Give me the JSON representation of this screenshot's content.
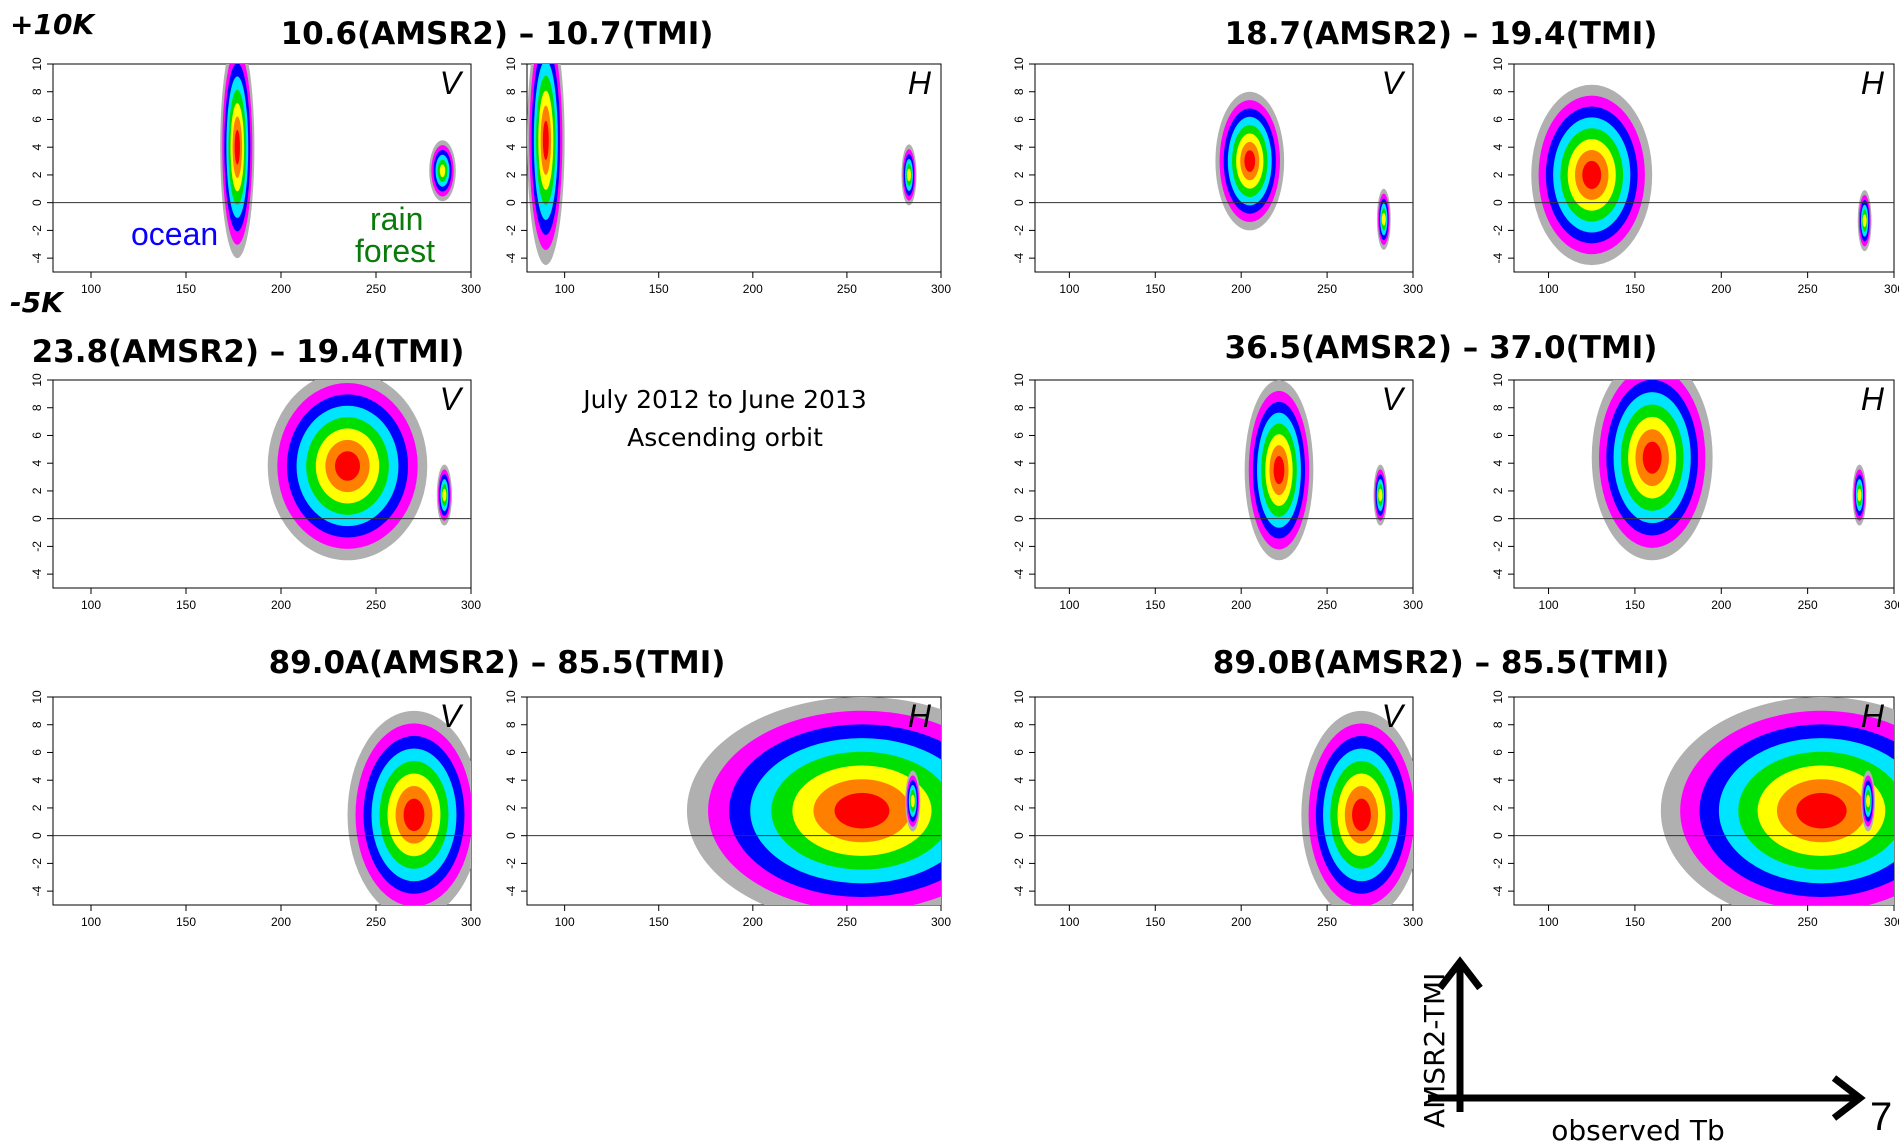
{
  "figure": {
    "corner_top": "+10K",
    "corner_bottom": "-5K",
    "note_line1": "July 2012 to June 2013",
    "note_line2": "Ascending orbit",
    "ocean_label": "ocean",
    "forest_label_1": "rain",
    "forest_label_2": "forest",
    "key_yaxis": "AMSR2-TMI",
    "key_xaxis": "observed Tb",
    "page_number": "7"
  },
  "colors": {
    "gray": "#b0b0b0",
    "magenta": "#ff00ff",
    "blue": "#0000ff",
    "cyan": "#00e5ff",
    "green": "#00e000",
    "yellow": "#ffff00",
    "orange": "#ff8000",
    "red": "#ff0000"
  },
  "titles": [
    "10.6(AMSR2) – 10.7(TMI)",
    "18.7(AMSR2) – 19.4(TMI)",
    "23.8(AMSR2) – 19.4(TMI)",
    "36.5(AMSR2) – 37.0(TMI)",
    "89.0A(AMSR2) – 85.5(TMI)",
    "89.0B(AMSR2) – 85.5(TMI)"
  ],
  "chart_data": [
    {
      "type": "heatmap",
      "channel": "10.6",
      "pol": "V",
      "xlim": [
        80,
        300
      ],
      "ylim": [
        -5,
        10
      ],
      "xticks": [
        100,
        150,
        200,
        250,
        300
      ],
      "yticks": [
        -4,
        -2,
        0,
        2,
        4,
        6,
        8,
        10
      ],
      "blobs": [
        {
          "x": [
            168,
            183
          ],
          "y": [
            -4,
            9.5
          ],
          "cx": 177,
          "cy": 4,
          "level": 7
        },
        {
          "x": 282,
          "y": 2.3,
          "cx": 285,
          "cy": 2.3,
          "level": 5
        }
      ]
    },
    {
      "type": "heatmap",
      "channel": "10.6",
      "pol": "H",
      "xlim": [
        80,
        300
      ],
      "ylim": [
        -5,
        10
      ],
      "xticks": [
        100,
        150,
        200,
        250,
        300
      ],
      "yticks": [
        -4,
        -2,
        0,
        2,
        4,
        6,
        8,
        10
      ],
      "blobs": [
        {
          "x": [
            82,
            100
          ],
          "y": [
            -4.5,
            10
          ],
          "cx": 90,
          "cy": 4.5,
          "level": 7
        },
        {
          "x": 283,
          "y": 2,
          "cx": 283,
          "cy": 2,
          "level": 5
        }
      ]
    },
    {
      "type": "heatmap",
      "channel": "18.7",
      "pol": "V",
      "xlim": [
        80,
        300
      ],
      "ylim": [
        -5,
        10
      ],
      "xticks": [
        100,
        150,
        200,
        250,
        300
      ],
      "yticks": [
        -4,
        -2,
        0,
        2,
        4,
        6,
        8,
        10
      ],
      "blobs": [
        {
          "x": [
            185,
            225
          ],
          "y": [
            -1,
            8
          ],
          "cx": 205,
          "cy": 3,
          "level": 7
        },
        {
          "x": 283,
          "y": -1.2,
          "cx": 283,
          "cy": -1.2,
          "level": 5
        }
      ]
    },
    {
      "type": "heatmap",
      "channel": "18.7",
      "pol": "H",
      "xlim": [
        80,
        300
      ],
      "ylim": [
        -5,
        10
      ],
      "xticks": [
        100,
        150,
        200,
        250,
        300
      ],
      "yticks": [
        -4,
        -2,
        0,
        2,
        4,
        6,
        8,
        10
      ],
      "blobs": [
        {
          "x": [
            95,
            160
          ],
          "y": [
            -4.5,
            8
          ],
          "cx": 125,
          "cy": 2,
          "level": 7
        },
        {
          "x": 283,
          "y": -1.3,
          "cx": 283,
          "cy": -1.3,
          "level": 5
        }
      ]
    },
    {
      "type": "heatmap",
      "channel": "23.8",
      "pol": "V",
      "xlim": [
        80,
        300
      ],
      "ylim": [
        -5,
        10
      ],
      "xticks": [
        100,
        150,
        200,
        250,
        300
      ],
      "yticks": [
        -4,
        -2,
        0,
        2,
        4,
        6,
        8,
        10
      ],
      "blobs": [
        {
          "x": [
            193,
            263
          ],
          "y": [
            -3,
            9
          ],
          "cx": 235,
          "cy": 3.8,
          "level": 7
        },
        {
          "x": 286,
          "y": 1.7,
          "cx": 286,
          "cy": 1.7,
          "level": 5
        }
      ]
    },
    {
      "type": "heatmap",
      "channel": "36.5",
      "pol": "V",
      "xlim": [
        80,
        300
      ],
      "ylim": [
        -5,
        10
      ],
      "xticks": [
        100,
        150,
        200,
        250,
        300
      ],
      "yticks": [
        -4,
        -2,
        0,
        2,
        4,
        6,
        8,
        10
      ],
      "blobs": [
        {
          "x": [
            207,
            242
          ],
          "y": [
            -2,
            10
          ],
          "cx": 222,
          "cy": 3.5,
          "level": 7
        },
        {
          "x": 281,
          "y": 1.7,
          "cx": 281,
          "cy": 1.7,
          "level": 5
        }
      ]
    },
    {
      "type": "heatmap",
      "channel": "36.5",
      "pol": "H",
      "xlim": [
        80,
        300
      ],
      "ylim": [
        -5,
        10
      ],
      "xticks": [
        100,
        150,
        200,
        250,
        300
      ],
      "yticks": [
        -4,
        -2,
        0,
        2,
        4,
        6,
        8,
        10
      ],
      "blobs": [
        {
          "x": [
            125,
            190
          ],
          "y": [
            -3,
            10
          ],
          "cx": 160,
          "cy": 4.4,
          "level": 7
        },
        {
          "x": 280,
          "y": 1.7,
          "cx": 280,
          "cy": 1.7,
          "level": 5
        }
      ]
    },
    {
      "type": "heatmap",
      "channel": "89.0A",
      "pol": "V",
      "xlim": [
        80,
        300
      ],
      "ylim": [
        -5,
        10
      ],
      "xticks": [
        100,
        150,
        200,
        250,
        300
      ],
      "yticks": [
        -4,
        -2,
        0,
        2,
        4,
        6,
        8,
        10
      ],
      "blobs": [
        {
          "x": [
            235,
            290
          ],
          "y": [
            -4.5,
            9
          ],
          "cx": 270,
          "cy": 1.5,
          "level": 7
        }
      ]
    },
    {
      "type": "heatmap",
      "channel": "89.0A",
      "pol": "H",
      "xlim": [
        80,
        300
      ],
      "ylim": [
        -5,
        10
      ],
      "xticks": [
        100,
        150,
        200,
        250,
        300
      ],
      "yticks": [
        -4,
        -2,
        0,
        2,
        4,
        6,
        8,
        10
      ],
      "blobs": [
        {
          "x": [
            165,
            290
          ],
          "y": [
            -4.5,
            10
          ],
          "cx": 258,
          "cy": 1.8,
          "level": 7
        },
        {
          "x": 285,
          "y": 2.5,
          "cx": 285,
          "cy": 2.5,
          "level": 5
        }
      ]
    },
    {
      "type": "heatmap",
      "channel": "89.0B",
      "pol": "V",
      "xlim": [
        80,
        300
      ],
      "ylim": [
        -5,
        10
      ],
      "xticks": [
        100,
        150,
        200,
        250,
        300
      ],
      "yticks": [
        -4,
        -2,
        0,
        2,
        4,
        6,
        8,
        10
      ],
      "blobs": [
        {
          "x": [
            235,
            290
          ],
          "y": [
            -4.5,
            9
          ],
          "cx": 270,
          "cy": 1.5,
          "level": 7
        }
      ]
    },
    {
      "type": "heatmap",
      "channel": "89.0B",
      "pol": "H",
      "xlim": [
        80,
        300
      ],
      "ylim": [
        -5,
        10
      ],
      "xticks": [
        100,
        150,
        200,
        250,
        300
      ],
      "yticks": [
        -4,
        -2,
        0,
        2,
        4,
        6,
        8,
        10
      ],
      "blobs": [
        {
          "x": [
            165,
            290
          ],
          "y": [
            -4.5,
            10
          ],
          "cx": 258,
          "cy": 1.8,
          "level": 7
        },
        {
          "x": 285,
          "y": 2.5,
          "cx": 285,
          "cy": 2.5,
          "level": 5
        }
      ]
    }
  ]
}
